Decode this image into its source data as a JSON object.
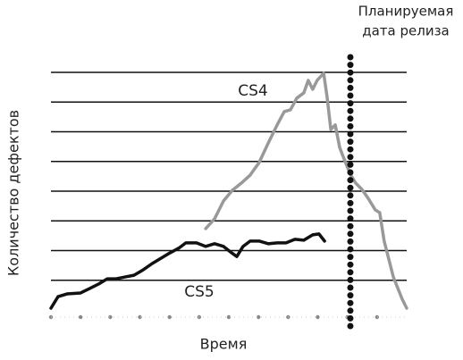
{
  "chart_data": {
    "type": "line",
    "ylabel": "Количество дефектов",
    "xlabel": "Время",
    "xlim": [
      0,
      12
    ],
    "ylim": [
      0,
      8
    ],
    "xticks": [
      0,
      1,
      2,
      3,
      4,
      5,
      6,
      7,
      8,
      9,
      10,
      11
    ],
    "yticks": [
      0,
      1,
      2,
      3,
      4,
      5,
      6,
      7,
      8
    ],
    "grid": true,
    "release": {
      "x": 10.1,
      "label": [
        "Планируемая",
        "дата релиза"
      ]
    },
    "series": [
      {
        "name": "CS4",
        "color": "#999999",
        "x": [
          5.22,
          5.52,
          5.82,
          6.12,
          6.42,
          6.72,
          7.02,
          7.33,
          7.63,
          7.87,
          8.08,
          8.29,
          8.53,
          8.68,
          8.83,
          8.98,
          9.2,
          9.32,
          9.44,
          9.59,
          9.74,
          9.89,
          10.1,
          10.28,
          10.49,
          10.7,
          10.94,
          11.09,
          11.24,
          11.55,
          11.85,
          12.0
        ],
        "values": [
          2.74,
          3.07,
          3.67,
          4.03,
          4.27,
          4.54,
          4.96,
          5.62,
          6.23,
          6.68,
          6.74,
          7.13,
          7.31,
          7.73,
          7.43,
          7.73,
          7.97,
          7.13,
          6.08,
          6.23,
          5.47,
          5.08,
          4.57,
          4.27,
          4.06,
          3.76,
          3.37,
          3.28,
          2.32,
          1.11,
          0.36,
          0.06
        ]
      },
      {
        "name": "CS5",
        "color": "#111111",
        "x": [
          0,
          0.24,
          0.54,
          0.99,
          1.3,
          1.6,
          1.9,
          2.2,
          2.5,
          2.8,
          3.11,
          3.41,
          3.71,
          4.01,
          4.31,
          4.55,
          4.91,
          5.22,
          5.52,
          5.82,
          6.06,
          6.27,
          6.48,
          6.72,
          7.02,
          7.33,
          7.63,
          7.93,
          8.23,
          8.53,
          8.83,
          9.04,
          9.23
        ],
        "values": [
          0.06,
          0.45,
          0.54,
          0.57,
          0.72,
          0.87,
          1.05,
          1.05,
          1.11,
          1.17,
          1.35,
          1.56,
          1.74,
          1.92,
          2.08,
          2.26,
          2.26,
          2.14,
          2.23,
          2.14,
          1.95,
          1.8,
          2.14,
          2.32,
          2.32,
          2.23,
          2.26,
          2.26,
          2.38,
          2.35,
          2.53,
          2.56,
          2.32
        ]
      }
    ]
  }
}
